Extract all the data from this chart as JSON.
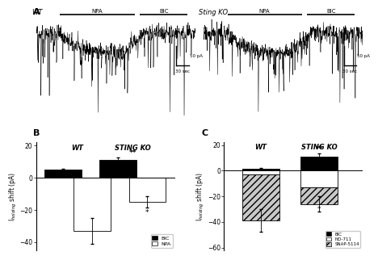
{
  "panel_B": {
    "title_WT": "WT",
    "title_STINGKO": "STING KO",
    "ylim": [
      -45,
      22
    ],
    "yticks": [
      -40,
      -20,
      0,
      20
    ],
    "WT_BIC": 5.0,
    "WT_BIC_err": 0.7,
    "WT_NPA": -33.0,
    "WT_NPA_err": 8.0,
    "STINGKO_BIC": 11.0,
    "STINGKO_BIC_err": 1.5,
    "STINGKO_NPA": -15.0,
    "STINGKO_NPA_err": 3.5
  },
  "panel_C": {
    "title_WT": "WT",
    "title_STINGKO": "STING KO",
    "ylim": [
      -62,
      22
    ],
    "yticks": [
      -60,
      -40,
      -20,
      0,
      20
    ],
    "WT_BIC": 1.5,
    "WT_BIC_err": 0.5,
    "WT_NO711": -3.0,
    "WT_SNAP5114": -36.0,
    "WT_total_err": 9.0,
    "STINGKO_BIC": 11.0,
    "STINGKO_BIC_err": 2.5,
    "STINGKO_NO711": -13.0,
    "STINGKO_SNAP5114": -13.0,
    "STINGKO_total_err": 6.0
  }
}
